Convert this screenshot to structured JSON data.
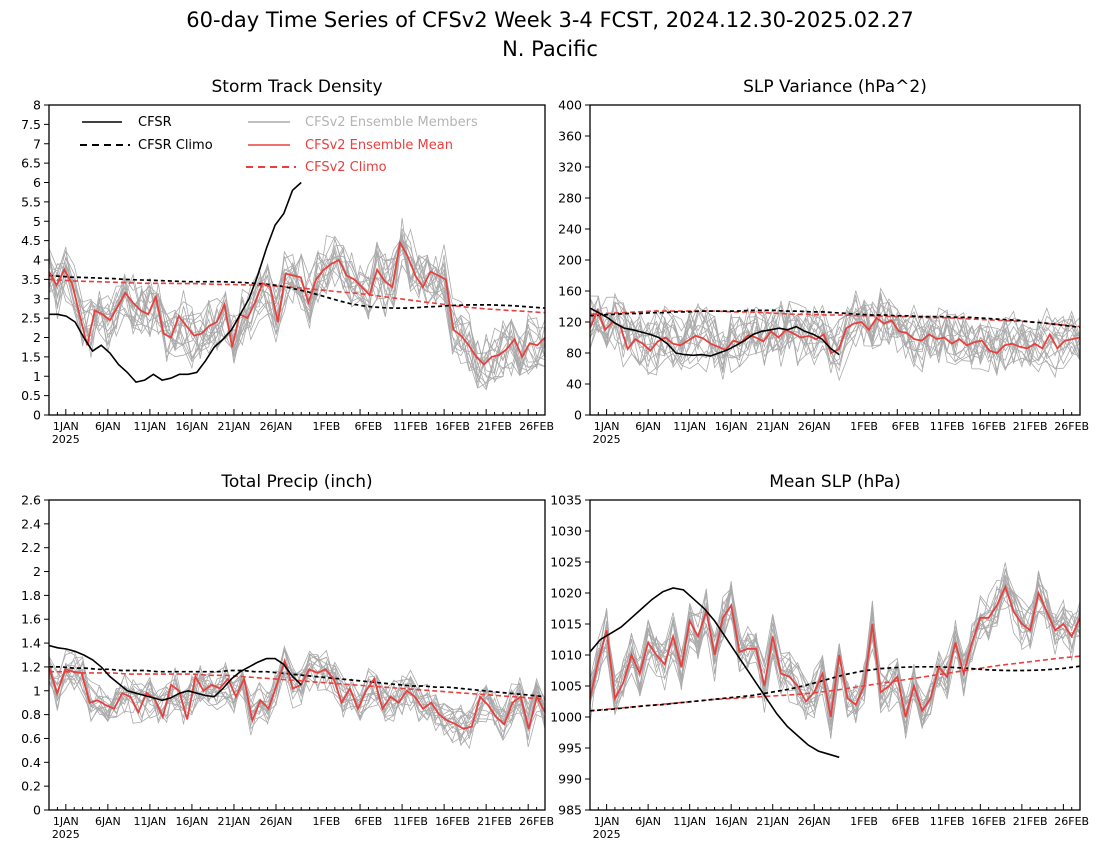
{
  "figure": {
    "title_line1": "60-day Time Series of CFSv2 Week 3-4 FCST, 2024.12.30-2025.02.27",
    "title_line2": "N. Pacific"
  },
  "legend": {
    "cfsr": "CFSR",
    "cfsr_climo": "CFSR Climo",
    "members": "CFSv2 Ensemble Members",
    "ens_mean": "CFSv2 Ensemble Mean",
    "cfsv2_climo": "CFSv2 Climo"
  },
  "colors": {
    "cfsr": "#000000",
    "ens_mean": "#e8403e",
    "members": "#aaaaaa",
    "legend_members_text": "#b4b4b4"
  },
  "chart_data": [
    {
      "type": "line",
      "title": "Storm Track Density",
      "ylim": [
        0,
        8
      ],
      "yticks": [
        "0",
        "0.5",
        "1",
        "1.5",
        "2",
        "2.5",
        "3",
        "3.5",
        "4",
        "4.5",
        "5",
        "5.5",
        "6",
        "6.5",
        "7",
        "7.5",
        "8"
      ],
      "xticks": [
        "1JAN",
        "6JAN",
        "11JAN",
        "16JAN",
        "21JAN",
        "26JAN",
        "1FEB",
        "6FEB",
        "11FEB",
        "16FEB",
        "21FEB",
        "26FEB"
      ],
      "xtick_year": "2025",
      "cfsr": [
        2.6,
        2.6,
        2.55,
        2.4,
        2.0,
        1.65,
        1.8,
        1.6,
        1.3,
        1.1,
        0.85,
        0.9,
        1.05,
        0.9,
        0.95,
        1.05,
        1.05,
        1.1,
        1.4,
        1.75,
        1.95,
        2.2,
        2.6,
        3.0,
        3.6,
        4.3,
        4.9,
        5.2,
        5.8,
        6.0
      ],
      "cfsr_climo": [
        3.6,
        3.58,
        3.56,
        3.55,
        3.54,
        3.53,
        3.52,
        3.5,
        3.49,
        3.48,
        3.47,
        3.46,
        3.45,
        3.44,
        3.44,
        3.44,
        3.44,
        3.43,
        3.42,
        3.4,
        3.38,
        3.35,
        3.3,
        3.24,
        3.18,
        3.1,
        3.02,
        2.94,
        2.87,
        2.82,
        2.79,
        2.77,
        2.76,
        2.76,
        2.77,
        2.79,
        2.8,
        2.82,
        2.83,
        2.84,
        2.84,
        2.84,
        2.83,
        2.82,
        2.8,
        2.78,
        2.76
      ],
      "ens_mean": [
        3.7,
        3.35,
        3.75,
        3.4,
        2.6,
        1.8,
        2.7,
        2.6,
        2.45,
        2.8,
        3.15,
        2.9,
        2.7,
        2.6,
        3.05,
        2.1,
        2.0,
        2.55,
        2.3,
        2.05,
        2.1,
        2.3,
        2.4,
        2.85,
        1.75,
        2.6,
        2.5,
        2.9,
        3.4,
        3.3,
        2.4,
        3.65,
        3.6,
        3.55,
        2.9,
        3.5,
        3.75,
        3.9,
        4.0,
        3.6,
        3.5,
        3.3,
        3.1,
        3.75,
        3.45,
        3.3,
        4.45,
        4.1,
        3.6,
        3.3,
        3.7,
        3.6,
        3.5,
        2.2,
        2.05,
        1.8,
        1.5,
        1.3,
        1.5,
        1.55,
        1.7,
        1.95,
        1.5,
        1.85,
        1.8,
        2.0
      ],
      "cfsv2_climo": [
        3.5,
        3.48,
        3.46,
        3.45,
        3.44,
        3.43,
        3.42,
        3.41,
        3.4,
        3.4,
        3.4,
        3.39,
        3.39,
        3.38,
        3.37,
        3.37,
        3.36,
        3.35,
        3.34,
        3.32,
        3.3,
        3.27,
        3.24,
        3.21,
        3.18,
        3.15,
        3.12,
        3.08,
        3.04,
        3.0,
        2.96,
        2.92,
        2.88,
        2.84,
        2.8,
        2.77,
        2.74,
        2.72,
        2.7,
        2.68,
        2.66,
        2.64
      ]
    },
    {
      "type": "line",
      "title": "SLP Variance (hPa^2)",
      "ylim": [
        0,
        400
      ],
      "yticks": [
        "0",
        "40",
        "80",
        "120",
        "160",
        "200",
        "240",
        "280",
        "320",
        "360",
        "400"
      ],
      "xticks": [
        "1JAN",
        "6JAN",
        "11JAN",
        "16JAN",
        "21JAN",
        "26JAN",
        "1FEB",
        "6FEB",
        "11FEB",
        "16FEB",
        "21FEB",
        "26FEB"
      ],
      "xtick_year": "2025",
      "cfsr": [
        138,
        132,
        126,
        118,
        112,
        110,
        107,
        104,
        100,
        92,
        80,
        78,
        77,
        78,
        76,
        80,
        84,
        90,
        96,
        104,
        108,
        110,
        112,
        110,
        114,
        108,
        104,
        98,
        86,
        78
      ],
      "cfsr_climo": [
        128,
        129,
        130,
        131,
        131,
        132,
        132,
        133,
        133,
        134,
        134,
        134,
        134,
        135,
        135,
        135,
        134,
        134,
        133,
        133,
        132,
        131,
        130,
        129,
        129,
        128,
        128,
        127,
        127,
        127,
        126,
        126,
        125,
        124,
        123,
        122,
        120,
        119,
        117,
        115,
        113
      ],
      "ens_mean": [
        112,
        135,
        110,
        120,
        115,
        85,
        98,
        92,
        83,
        95,
        100,
        92,
        90,
        96,
        102,
        99,
        92,
        88,
        84,
        96,
        93,
        103,
        100,
        95,
        108,
        100,
        110,
        105,
        100,
        102,
        98,
        104,
        80,
        85,
        112,
        118,
        120,
        110,
        125,
        118,
        122,
        108,
        106,
        98,
        96,
        104,
        98,
        100,
        92,
        98,
        90,
        94,
        96,
        83,
        80,
        90,
        92,
        88,
        86,
        92,
        86,
        104,
        86,
        96,
        98,
        100
      ],
      "cfsv2_climo": [
        130,
        131,
        132,
        133,
        134,
        134,
        134,
        134,
        134,
        133,
        133,
        132,
        131,
        130,
        130,
        129,
        129,
        128,
        128,
        127,
        127,
        126,
        126,
        125,
        124,
        123,
        122,
        121,
        120,
        118,
        116,
        114
      ]
    },
    {
      "type": "line",
      "title": "Total Precip (inch)",
      "ylim": [
        0,
        2.6
      ],
      "yticks": [
        "0",
        "0.2",
        "0.4",
        "0.6",
        "0.8",
        "1",
        "1.2",
        "1.4",
        "1.6",
        "1.8",
        "2",
        "2.2",
        "2.4",
        "2.6"
      ],
      "xticks": [
        "1JAN",
        "6JAN",
        "11JAN",
        "16JAN",
        "21JAN",
        "26JAN",
        "1FEB",
        "6FEB",
        "11FEB",
        "16FEB",
        "21FEB",
        "26FEB"
      ],
      "xtick_year": "2025",
      "cfsr": [
        1.38,
        1.36,
        1.35,
        1.33,
        1.3,
        1.26,
        1.2,
        1.12,
        1.06,
        1.0,
        0.98,
        0.96,
        0.94,
        0.92,
        0.94,
        0.98,
        1.0,
        0.98,
        0.96,
        0.95,
        1.02,
        1.1,
        1.16,
        1.2,
        1.24,
        1.27,
        1.27,
        1.22,
        1.12,
        1.05
      ],
      "cfsr_climo": [
        1.2,
        1.2,
        1.19,
        1.19,
        1.18,
        1.18,
        1.17,
        1.17,
        1.17,
        1.16,
        1.16,
        1.16,
        1.16,
        1.16,
        1.16,
        1.17,
        1.17,
        1.16,
        1.16,
        1.15,
        1.14,
        1.13,
        1.12,
        1.11,
        1.1,
        1.09,
        1.08,
        1.07,
        1.06,
        1.05,
        1.04,
        1.04,
        1.03,
        1.03,
        1.02,
        1.01,
        1.0,
        0.99,
        0.98,
        0.97,
        0.96,
        0.95
      ],
      "ens_mean": [
        1.2,
        0.98,
        1.18,
        1.16,
        1.15,
        0.9,
        0.92,
        0.88,
        0.85,
        0.98,
        0.95,
        0.82,
        0.98,
        0.93,
        0.78,
        1.05,
        1.0,
        0.76,
        1.12,
        1.0,
        1.05,
        1.02,
        1.1,
        0.95,
        1.1,
        0.75,
        0.92,
        0.85,
        1.05,
        1.25,
        1.02,
        1.05,
        1.18,
        1.15,
        1.18,
        1.1,
        0.9,
        1.02,
        0.85,
        1.0,
        1.1,
        0.85,
        0.95,
        0.9,
        1.0,
        0.95,
        0.85,
        0.9,
        0.8,
        0.75,
        0.72,
        0.68,
        0.7,
        0.95,
        0.88,
        0.78,
        0.72,
        0.9,
        0.95,
        0.68,
        0.95,
        0.82
      ],
      "cfsv2_climo": [
        1.16,
        1.16,
        1.15,
        1.15,
        1.15,
        1.14,
        1.14,
        1.14,
        1.14,
        1.14,
        1.13,
        1.13,
        1.12,
        1.11,
        1.1,
        1.09,
        1.08,
        1.07,
        1.06,
        1.05,
        1.04,
        1.03,
        1.02,
        1.01,
        1.0,
        0.99,
        0.98,
        0.97,
        0.96,
        0.95,
        0.94,
        0.93
      ]
    },
    {
      "type": "line",
      "title": "Mean SLP (hPa)",
      "ylim": [
        985,
        1035
      ],
      "yticks": [
        "985",
        "990",
        "995",
        "1000",
        "1005",
        "1010",
        "1015",
        "1020",
        "1025",
        "1030",
        "1035"
      ],
      "xticks": [
        "1JAN",
        "6JAN",
        "11JAN",
        "16JAN",
        "21JAN",
        "26JAN",
        "1FEB",
        "6FEB",
        "11FEB",
        "16FEB",
        "21FEB",
        "26FEB"
      ],
      "xtick_year": "2025",
      "cfsr": [
        1010.5,
        1012.5,
        1013.5,
        1014.5,
        1016.0,
        1017.5,
        1019.0,
        1020.2,
        1020.8,
        1020.5,
        1019.0,
        1017.5,
        1015.5,
        1013.0,
        1010.5,
        1008.0,
        1005.5,
        1003.0,
        1000.5,
        998.5,
        997.0,
        995.5,
        994.5,
        994.0,
        993.5
      ],
      "cfsr_climo": [
        1001.0,
        1001.2,
        1001.5,
        1001.8,
        1002.0,
        1002.3,
        1002.6,
        1002.9,
        1003.2,
        1003.5,
        1004.0,
        1004.5,
        1005.2,
        1006.0,
        1006.8,
        1007.4,
        1007.8,
        1008.0,
        1008.1,
        1008.1,
        1008.0,
        1007.8,
        1007.6,
        1007.5,
        1007.5,
        1007.6,
        1007.8,
        1008.2
      ],
      "ens_mean": [
        1003.0,
        1009.0,
        1014.0,
        1003.0,
        1005.5,
        1010.0,
        1007.0,
        1012.0,
        1010.0,
        1008.5,
        1013.0,
        1008.0,
        1015.5,
        1013.0,
        1017.0,
        1010.0,
        1016.0,
        1018.0,
        1010.5,
        1011.0,
        1011.0,
        1005.0,
        1013.0,
        1007.0,
        1006.5,
        1005.0,
        1002.5,
        1004.0,
        1007.0,
        1000.0,
        1010.0,
        1003.0,
        1002.0,
        1005.0,
        1015.0,
        1004.0,
        1005.0,
        1006.5,
        1000.0,
        1005.0,
        1001.0,
        1003.0,
        1008.0,
        1006.5,
        1012.0,
        1007.0,
        1012.0,
        1016.0,
        1016.0,
        1018.0,
        1021.0,
        1017.0,
        1015.0,
        1014.0,
        1020.0,
        1017.0,
        1014.0,
        1015.0,
        1013.0,
        1016.0
      ],
      "cfsv2_climo": [
        1001.0,
        1001.3,
        1001.6,
        1001.9,
        1002.2,
        1002.5,
        1002.8,
        1003.0,
        1003.2,
        1003.4,
        1003.6,
        1003.9,
        1004.3,
        1004.8,
        1005.3,
        1005.8,
        1006.3,
        1006.8,
        1007.3,
        1007.8,
        1008.3,
        1008.7,
        1009.1,
        1009.5,
        1009.8
      ]
    }
  ]
}
